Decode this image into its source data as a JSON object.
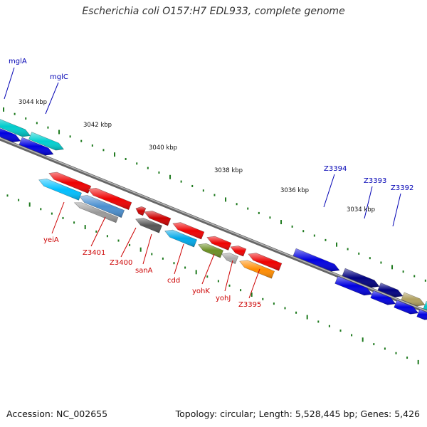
{
  "title": "Escherichia coli O157:H7 EDL933, complete genome",
  "footer": {
    "accession": "Accession: NC_002655",
    "summary": "Topology: circular; Length: 5,528,445 bp; Genes: 5,426"
  },
  "colors": {
    "backbone": "#808080",
    "tick": "#1e7a1e",
    "tick_label": "#111111",
    "forward_label": "#0000b4",
    "reverse_label": "#cc0000"
  },
  "ruler": [
    {
      "label": "3044 kbp",
      "pos": 3044
    },
    {
      "label": "3042 kbp",
      "pos": 3042
    },
    {
      "label": "3040 kbp",
      "pos": 3040
    },
    {
      "label": "3038 kbp",
      "pos": 3038
    },
    {
      "label": "3036 kbp",
      "pos": 3036
    },
    {
      "label": "3034 kbp",
      "pos": 3034
    }
  ],
  "genes_forward": [
    {
      "name": "mglA",
      "color": "#00cccc"
    },
    {
      "name": "mglC",
      "color": "#00d0d0"
    },
    {
      "name": "Z3394",
      "color": "#0000e0"
    },
    {
      "name": "Z3393",
      "color": "#000080"
    },
    {
      "name": "Z3392",
      "color": "#b0a060"
    }
  ],
  "genes_reverse": [
    {
      "name": "yeiA",
      "color": "#ee0000"
    },
    {
      "name": "Z3401",
      "color": "#4a8fd0"
    },
    {
      "name": "Z3400",
      "color": "#cc0000"
    },
    {
      "name": "sanA",
      "color": "#555555"
    },
    {
      "name": "cdd",
      "color": "#00a8e8"
    },
    {
      "name": "yohK",
      "color": "#6b8e23"
    },
    {
      "name": "yohJ",
      "color": "#aaaaaa"
    },
    {
      "name": "Z3395",
      "color": "#ff8c00"
    }
  ]
}
